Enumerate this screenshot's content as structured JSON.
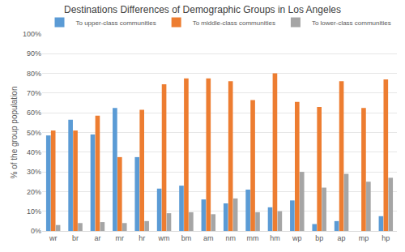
{
  "chart_data": {
    "type": "bar",
    "title": "Destinations Differences of Demographic Groups in Los Angeles",
    "y_label": "% of the group population",
    "categories": [
      "wr",
      "br",
      "ar",
      "mr",
      "hr",
      "wm",
      "bm",
      "am",
      "nm",
      "mm",
      "hm",
      "wp",
      "bp",
      "ap",
      "mp",
      "hp"
    ],
    "series": [
      {
        "name": "To upper-class communities",
        "color": "#5B9BD5",
        "values": [
          48.5,
          56.5,
          49,
          62.5,
          37.5,
          21.5,
          23,
          16,
          14,
          21,
          12,
          15.5,
          3.5,
          5,
          0,
          7.5
        ]
      },
      {
        "name": "To middle-class communities",
        "color": "#ED7D31",
        "values": [
          51,
          51,
          58.5,
          37.5,
          61.5,
          74.5,
          77.5,
          77.5,
          76,
          66.5,
          80,
          65.5,
          63,
          76,
          62.5,
          77
        ]
      },
      {
        "name": "To lower-class communities",
        "color": "#A5A5A5",
        "values": [
          3,
          4,
          4.5,
          4,
          5,
          9,
          9.5,
          8.5,
          16.5,
          9.5,
          10,
          30,
          22,
          29,
          25,
          27
        ]
      }
    ],
    "ylim": [
      0,
      100
    ],
    "yticks": [
      {
        "value": 0,
        "label": "0%"
      },
      {
        "value": 10,
        "label": "10%"
      },
      {
        "value": 20,
        "label": "20%"
      },
      {
        "value": 30,
        "label": "30%"
      },
      {
        "value": 40,
        "label": "40%"
      },
      {
        "value": 50,
        "label": "50%"
      },
      {
        "value": 60,
        "label": "60%"
      },
      {
        "value": 70,
        "label": "70%"
      },
      {
        "value": 80,
        "label": "80%"
      },
      {
        "value": 90,
        "label": "90%"
      },
      {
        "value": 100,
        "label": "100%"
      }
    ],
    "grid": true,
    "legend": "top"
  }
}
